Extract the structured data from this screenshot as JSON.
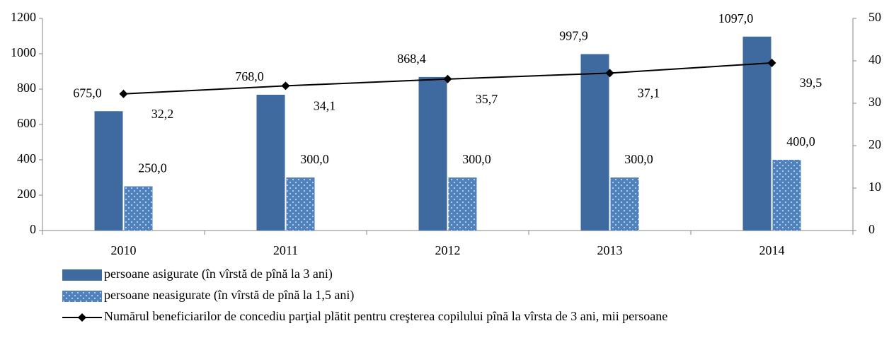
{
  "chart_data": {
    "type": "bar_line",
    "categories": [
      "2010",
      "2011",
      "2012",
      "2013",
      "2014"
    ],
    "series": [
      {
        "name": "persoane asigurate (în vîrstă de pînă la 3 ani)",
        "type": "bar",
        "color": "#3f6aa0",
        "values": [
          675,
          768,
          868.4,
          997.9,
          1097
        ],
        "value_labels": [
          "675,0",
          "768,0",
          "868,4",
          "997,9",
          "1097,0"
        ]
      },
      {
        "name": "persoane neasigurate (în vîrstă de pînă la 1,5 ani)",
        "type": "bar",
        "color": "#4f81bd",
        "values": [
          250,
          300,
          300,
          300,
          400
        ],
        "value_labels": [
          "250,0",
          "300,0",
          "300,0",
          "300,0",
          "400,0"
        ]
      },
      {
        "name": "Numărul beneficiarilor de concediu parţial plătit pentru creşterea copilului pînă la vîrsta de 3 ani, mii persoane",
        "type": "line",
        "axis": "y2",
        "color": "#000000",
        "values": [
          32.2,
          34.1,
          35.7,
          37.1,
          39.5
        ],
        "value_labels": [
          "32,2",
          "34,1",
          "35,7",
          "37,1",
          "39,5"
        ]
      }
    ],
    "ylim": [
      0,
      1200
    ],
    "yticks": [
      0,
      200,
      400,
      600,
      800,
      1000,
      1200
    ],
    "y2lim": [
      0,
      50
    ],
    "y2ticks": [
      0,
      10,
      20,
      30,
      40,
      50
    ],
    "grid": false,
    "legend": "bottom"
  }
}
